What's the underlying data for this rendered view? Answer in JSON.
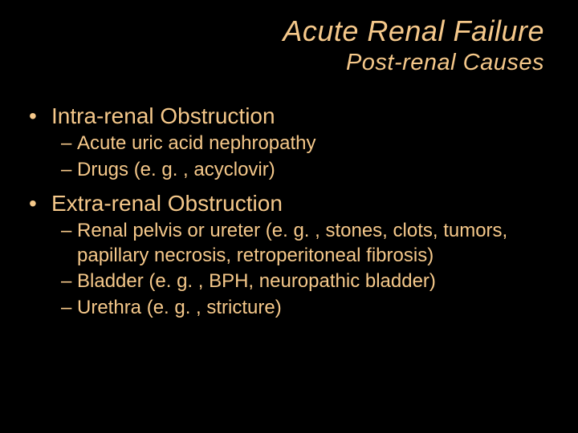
{
  "colors": {
    "background": "#000000",
    "text": "#f5c88a"
  },
  "typography": {
    "title_fontsize": 36,
    "subtitle_fontsize": 29,
    "bullet_fontsize": 28,
    "sub_fontsize": 24,
    "font_family": "Arial",
    "title_style": "italic"
  },
  "title": "Acute Renal Failure",
  "subtitle": "Post-renal Causes",
  "sections": [
    {
      "heading": "Intra-renal Obstruction",
      "items": [
        "Acute uric acid nephropathy",
        "Drugs (e. g. , acyclovir)"
      ]
    },
    {
      "heading": "Extra-renal Obstruction",
      "items": [
        "Renal pelvis or ureter (e. g. , stones, clots, tumors, papillary necrosis, retroperitoneal fibrosis)",
        "Bladder (e. g. , BPH, neuropathic bladder)",
        "Urethra (e. g. , stricture)"
      ]
    }
  ]
}
